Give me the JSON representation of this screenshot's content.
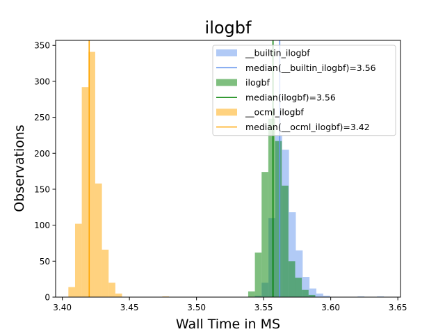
{
  "chart_data": {
    "type": "histogram",
    "title": "ilogbf",
    "xlabel": "Wall Time in MS",
    "ylabel": "Observations",
    "xlim": [
      3.395,
      3.652
    ],
    "ylim": [
      0,
      357
    ],
    "xticks": [
      3.4,
      3.45,
      3.5,
      3.55,
      3.6,
      3.65
    ],
    "xtick_labels": [
      "3.40",
      "3.45",
      "3.50",
      "3.55",
      "3.60",
      "3.65"
    ],
    "yticks": [
      0,
      50,
      100,
      150,
      200,
      250,
      300,
      350
    ],
    "ytick_labels": [
      "0",
      "50",
      "100",
      "150",
      "200",
      "250",
      "300",
      "350"
    ],
    "grid": false,
    "legend_position": "upper-right",
    "series": [
      {
        "name": "__builtin_ilogbf",
        "color": "#6495ed",
        "alpha": 0.5,
        "bins": [
          {
            "x0": 3.5434,
            "x1": 3.5485,
            "y": 2
          },
          {
            "x0": 3.5485,
            "x1": 3.5536,
            "y": 20
          },
          {
            "x0": 3.5536,
            "x1": 3.5587,
            "y": 110
          },
          {
            "x0": 3.5587,
            "x1": 3.5638,
            "y": 225
          },
          {
            "x0": 3.5638,
            "x1": 3.5689,
            "y": 205
          },
          {
            "x0": 3.5689,
            "x1": 3.574,
            "y": 118
          },
          {
            "x0": 3.574,
            "x1": 3.5791,
            "y": 65
          },
          {
            "x0": 3.5791,
            "x1": 3.5842,
            "y": 28
          },
          {
            "x0": 3.5842,
            "x1": 3.5893,
            "y": 12
          },
          {
            "x0": 3.5893,
            "x1": 3.5944,
            "y": 5
          },
          {
            "x0": 3.5944,
            "x1": 3.5995,
            "y": 2
          },
          {
            "x0": 3.62,
            "x1": 3.6251,
            "y": 1
          },
          {
            "x0": 3.6345,
            "x1": 3.6396,
            "y": 1
          }
        ],
        "median_label": "median(__builtin_ilogbf)=3.56",
        "median": 3.562,
        "median_color": "#6495ed"
      },
      {
        "name": "ilogbf",
        "color": "#008000",
        "alpha": 0.5,
        "bins": [
          {
            "x0": 3.5385,
            "x1": 3.5435,
            "y": 8
          },
          {
            "x0": 3.5435,
            "x1": 3.5485,
            "y": 62
          },
          {
            "x0": 3.5485,
            "x1": 3.5535,
            "y": 174
          },
          {
            "x0": 3.5535,
            "x1": 3.5585,
            "y": 248
          },
          {
            "x0": 3.5585,
            "x1": 3.5635,
            "y": 217
          },
          {
            "x0": 3.5635,
            "x1": 3.5685,
            "y": 155
          },
          {
            "x0": 3.5685,
            "x1": 3.5735,
            "y": 50
          },
          {
            "x0": 3.5735,
            "x1": 3.5785,
            "y": 27
          },
          {
            "x0": 3.5785,
            "x1": 3.5835,
            "y": 10
          },
          {
            "x0": 3.5835,
            "x1": 3.5885,
            "y": 3
          }
        ],
        "median_label": "median(ilogbf)=3.56",
        "median": 3.557,
        "median_color": "#008000"
      },
      {
        "name": "__ocml_ilogbf",
        "color": "#ffa500",
        "alpha": 0.5,
        "bins": [
          {
            "x0": 3.4045,
            "x1": 3.4095,
            "y": 14
          },
          {
            "x0": 3.4095,
            "x1": 3.4145,
            "y": 102
          },
          {
            "x0": 3.4145,
            "x1": 3.4195,
            "y": 292
          },
          {
            "x0": 3.4195,
            "x1": 3.4245,
            "y": 341
          },
          {
            "x0": 3.4245,
            "x1": 3.4295,
            "y": 158
          },
          {
            "x0": 3.4295,
            "x1": 3.4345,
            "y": 66
          },
          {
            "x0": 3.4345,
            "x1": 3.4395,
            "y": 20
          },
          {
            "x0": 3.4395,
            "x1": 3.4445,
            "y": 5
          },
          {
            "x0": 3.4745,
            "x1": 3.4795,
            "y": 1
          }
        ],
        "median_label": "median(__ocml_ilogbf)=3.42",
        "median": 3.42,
        "median_color": "#ffa500"
      }
    ]
  }
}
